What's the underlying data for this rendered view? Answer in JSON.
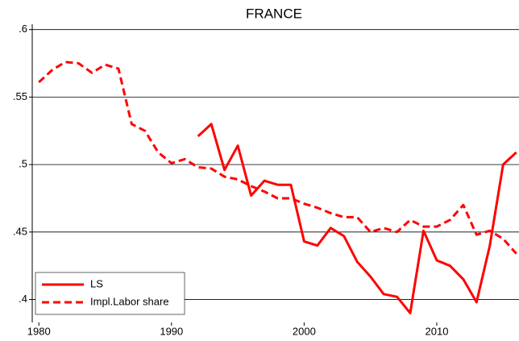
{
  "chart_data": {
    "type": "line",
    "title": "FRANCE",
    "x": [
      1980,
      1981,
      1982,
      1983,
      1984,
      1985,
      1986,
      1987,
      1988,
      1989,
      1990,
      1991,
      1992,
      1993,
      1994,
      1995,
      1996,
      1997,
      1998,
      1999,
      2000,
      2001,
      2002,
      2003,
      2004,
      2005,
      2006,
      2007,
      2008,
      2009,
      2010,
      2011,
      2012,
      2013,
      2014,
      2015,
      2016
    ],
    "series": [
      {
        "name": "LS",
        "color": "#ff0000",
        "style": "solid",
        "values": [
          null,
          null,
          null,
          null,
          null,
          null,
          null,
          null,
          null,
          null,
          null,
          null,
          0.521,
          0.53,
          0.496,
          0.514,
          0.477,
          0.488,
          0.485,
          0.485,
          0.443,
          0.44,
          0.453,
          0.447,
          0.428,
          0.417,
          0.404,
          0.402,
          0.39,
          0.451,
          0.429,
          0.425,
          0.415,
          0.398,
          0.44,
          0.5,
          0.509
        ]
      },
      {
        "name": "Impl.Labor share",
        "color": "#ff0000",
        "style": "dashed",
        "values": [
          0.561,
          0.57,
          0.576,
          0.575,
          0.568,
          0.574,
          0.571,
          0.53,
          0.525,
          0.509,
          0.501,
          0.504,
          0.498,
          0.497,
          0.491,
          0.489,
          0.484,
          0.48,
          0.475,
          0.475,
          0.471,
          0.468,
          0.464,
          0.461,
          0.461,
          0.45,
          0.453,
          0.45,
          0.459,
          0.454,
          0.454,
          0.459,
          0.47,
          0.448,
          0.451,
          0.445,
          0.434
        ]
      }
    ],
    "xlim": [
      1979.5,
      2016.2
    ],
    "xticks": [
      1980,
      1990,
      2000,
      2010
    ],
    "ylim": [
      0.383,
      0.604
    ],
    "yticks": [
      {
        "value": 0.4,
        "label": ".4"
      },
      {
        "value": 0.45,
        "label": ".45"
      },
      {
        "value": 0.5,
        "label": ".5"
      },
      {
        "value": 0.55,
        "label": ".55"
      },
      {
        "value": 0.6,
        "label": ".6"
      }
    ],
    "grid": true,
    "legend": "lower left"
  }
}
